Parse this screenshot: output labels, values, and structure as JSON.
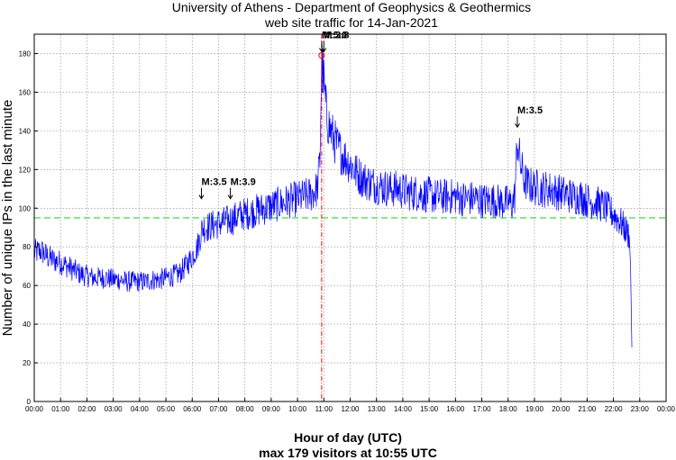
{
  "chart_data": {
    "type": "line",
    "title": "University of Athens - Department of Geophysics & Geothermics",
    "subtitle": "web site traffic for 14-Jan-2021",
    "xlabel": "Hour of day (UTC)",
    "ylabel": "Number of unique IPs in the last minute",
    "footer": "max 179 visitors at 10:55 UTC",
    "xlim": [
      0,
      24
    ],
    "ylim": [
      0,
      190
    ],
    "x_ticks": [
      "00:00",
      "01:00",
      "02:00",
      "03:00",
      "04:00",
      "05:00",
      "06:00",
      "07:00",
      "08:00",
      "09:00",
      "10:00",
      "11:00",
      "12:00",
      "13:00",
      "14:00",
      "15:00",
      "16:00",
      "17:00",
      "18:00",
      "19:00",
      "20:00",
      "21:00",
      "22:00",
      "23:00",
      "00:00"
    ],
    "y_ticks": [
      0,
      20,
      40,
      60,
      80,
      100,
      120,
      140,
      160,
      180
    ],
    "grid": true,
    "series": [
      {
        "color": "#0000ff",
        "x": [
          0,
          0.25,
          0.5,
          0.75,
          1.0,
          1.25,
          1.5,
          1.75,
          2.0,
          2.25,
          2.5,
          2.75,
          3.0,
          3.25,
          3.5,
          3.75,
          4.0,
          4.25,
          4.5,
          4.75,
          5.0,
          5.25,
          5.5,
          5.75,
          6.0,
          6.2,
          6.35,
          6.4,
          6.5,
          6.75,
          7.0,
          7.25,
          7.5,
          7.75,
          8.0,
          8.25,
          8.5,
          8.75,
          9.0,
          9.25,
          9.5,
          9.75,
          10.0,
          10.25,
          10.5,
          10.75,
          10.85,
          10.917,
          11.0,
          11.1,
          11.25,
          11.5,
          11.75,
          12.0,
          12.25,
          12.5,
          12.75,
          13.0,
          13.25,
          13.5,
          13.75,
          14.0,
          14.25,
          14.5,
          14.75,
          15.0,
          15.25,
          15.5,
          15.75,
          16.0,
          16.25,
          16.5,
          16.75,
          17.0,
          17.25,
          17.5,
          17.75,
          18.0,
          18.15,
          18.25,
          18.35,
          18.45,
          18.6,
          18.75,
          19.0,
          19.25,
          19.5,
          19.75,
          20.0,
          20.25,
          20.5,
          20.75,
          21.0,
          21.25,
          21.5,
          21.75,
          22.0,
          22.25,
          22.5,
          22.6,
          22.65,
          22.7
        ],
        "values": [
          77,
          78,
          75,
          73,
          72,
          70,
          68,
          66,
          65,
          64,
          64,
          64,
          63,
          63,
          62,
          62,
          62,
          62,
          63,
          63,
          64,
          65,
          66,
          70,
          75,
          80,
          88,
          90,
          90,
          91,
          92,
          93,
          94,
          96,
          97,
          98,
          99,
          100,
          101,
          102,
          103,
          104,
          105,
          106,
          107,
          110,
          125,
          176,
          165,
          148,
          140,
          132,
          127,
          123,
          118,
          115,
          113,
          112,
          111,
          110,
          110,
          109,
          108,
          108,
          107,
          107,
          106,
          106,
          106,
          106,
          105,
          105,
          105,
          104,
          104,
          104,
          103,
          103,
          102,
          106,
          135,
          124,
          115,
          112,
          111,
          110,
          110,
          109,
          108,
          107,
          106,
          106,
          104,
          103,
          102,
          100,
          97,
          93,
          88,
          86,
          70,
          28
        ]
      }
    ],
    "mean_line": {
      "value": 95,
      "color": "#00dd00"
    },
    "max_marker": {
      "x": 10.917,
      "y": 179,
      "color": "#ff0000"
    },
    "annotations": [
      {
        "label": "M:3.5",
        "x": 6.35,
        "y": 104
      },
      {
        "label": "M:3.9",
        "x": 7.45,
        "y": 104
      },
      {
        "label": "M:5.0",
        "x": 10.92,
        "y": 180
      },
      {
        "label": "M:3.8",
        "x": 11.0,
        "y": 180
      },
      {
        "label": "M:3.5",
        "x": 18.35,
        "y": 141
      }
    ]
  }
}
